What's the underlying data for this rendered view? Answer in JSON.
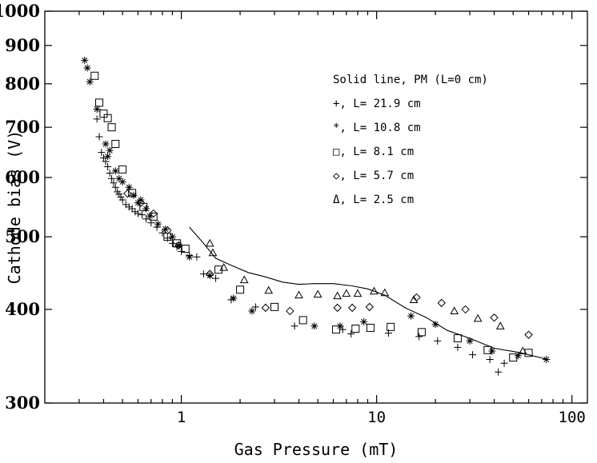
{
  "chart_data": {
    "type": "scatter",
    "title": "",
    "xlabel": "Gas Pressure (mT)",
    "ylabel": "Cathode bias (V)",
    "x_scale": "log",
    "y_scale": "log",
    "xlim": [
      0.2,
      120
    ],
    "ylim": [
      300,
      1000
    ],
    "x_ticks": [
      1,
      10,
      100
    ],
    "x_tick_labels": [
      "1",
      "10",
      "100"
    ],
    "y_ticks": [
      300,
      400,
      500,
      600,
      700,
      800,
      900,
      1000
    ],
    "y_tick_labels": [
      "300",
      "400",
      "500",
      "600",
      "700",
      "800",
      "900",
      "1000"
    ],
    "grid": false,
    "legend_position": "top-right",
    "legend_title": "Solid line, PM (L=0 cm)",
    "series": [
      {
        "name": "L= 21.9 cm",
        "marker": "+",
        "legend_label": "+, L= 21.9 cm",
        "x": [
          0.37,
          0.38,
          0.39,
          0.4,
          0.41,
          0.42,
          0.43,
          0.44,
          0.45,
          0.46,
          0.47,
          0.48,
          0.49,
          0.5,
          0.52,
          0.54,
          0.56,
          0.58,
          0.6,
          0.63,
          0.66,
          0.7,
          0.75,
          0.8,
          0.85,
          0.9,
          0.95,
          1.0,
          1.1,
          1.2,
          1.3,
          1.5,
          1.8,
          2.4,
          3.8,
          6.7,
          7.4,
          11.5,
          16.5,
          20.5,
          26,
          31,
          38,
          42,
          45
        ],
        "y": [
          718,
          680,
          648,
          637,
          630,
          620,
          608,
          598,
          590,
          582,
          574,
          570,
          565,
          560,
          552,
          548,
          545,
          540,
          537,
          535,
          528,
          522,
          515,
          506,
          498,
          490,
          485,
          478,
          472,
          470,
          446,
          440,
          412,
          403,
          380,
          376,
          371,
          372,
          368,
          363,
          356,
          348,
          343,
          330,
          339
        ]
      },
      {
        "name": "L= 10.8 cm",
        "marker": "*",
        "legend_label": "*, L= 10.8 cm",
        "x": [
          0.32,
          0.33,
          0.34,
          0.37,
          0.41,
          0.42,
          0.43,
          0.46,
          0.48,
          0.5,
          0.54,
          0.57,
          0.6,
          0.62,
          0.66,
          0.69,
          0.76,
          0.83,
          0.9,
          0.97,
          1.1,
          1.4,
          1.85,
          2.3,
          4.8,
          6.5,
          8.6,
          15,
          20,
          30,
          39,
          53,
          74
        ],
        "y": [
          860,
          840,
          805,
          740,
          665,
          640,
          652,
          612,
          598,
          592,
          582,
          568,
          555,
          560,
          545,
          533,
          520,
          512,
          500,
          487,
          470,
          444,
          414,
          398,
          380,
          380,
          385,
          392,
          382,
          363,
          352,
          347,
          343
        ]
      },
      {
        "name": "L= 8.1 cm",
        "marker": "square",
        "legend_label": "□, L= 8.1 cm",
        "x": [
          0.36,
          0.38,
          0.4,
          0.42,
          0.44,
          0.46,
          0.5,
          0.56,
          0.64,
          0.72,
          0.85,
          0.95,
          1.05,
          1.55,
          2.0,
          3.0,
          4.2,
          6.2,
          7.8,
          9.3,
          11.8,
          17,
          26,
          37,
          50,
          60
        ],
        "y": [
          820,
          755,
          730,
          720,
          700,
          665,
          615,
          572,
          548,
          532,
          500,
          490,
          482,
          452,
          425,
          403,
          387,
          376,
          377,
          378,
          379,
          373,
          366,
          353,
          345,
          350
        ]
      },
      {
        "name": "L= 5.7 cm",
        "marker": "diamond",
        "legend_label": "◇, L= 5.7 cm",
        "x": [
          0.53,
          0.62,
          0.72,
          0.85,
          0.97,
          1.4,
          2.7,
          3.6,
          6.3,
          7.5,
          9.2,
          16,
          21.5,
          28.5,
          40,
          60
        ],
        "y": [
          571,
          555,
          537,
          510,
          487,
          446,
          402,
          398,
          402,
          402,
          403,
          415,
          408,
          400,
          390,
          370
        ]
      },
      {
        "name": "L= 2.5 cm",
        "marker": "triangle",
        "legend_label": "Δ, L= 2.5 cm",
        "x": [
          1.4,
          1.45,
          1.65,
          2.1,
          2.8,
          4.0,
          5.0,
          6.3,
          7.0,
          8.0,
          9.7,
          11.0,
          15.5,
          25,
          33,
          43,
          56
        ],
        "y": [
          490,
          476,
          455,
          438,
          424,
          418,
          419,
          417,
          420,
          420,
          423,
          421,
          412,
          398,
          389,
          380,
          352
        ]
      },
      {
        "name": "PM (L=0 cm)",
        "marker": "line",
        "legend_label": "Solid line",
        "x": [
          1.1,
          1.3,
          1.5,
          1.8,
          2.2,
          2.7,
          3.3,
          4.0,
          4.8,
          6.0,
          7.5,
          9.0,
          11.0,
          14.0,
          18.0,
          23.0,
          30.0,
          40.0,
          55.0,
          75.0
        ],
        "y": [
          515,
          490,
          468,
          458,
          448,
          442,
          435,
          432,
          433,
          433,
          430,
          426,
          418,
          402,
          390,
          375,
          366,
          355,
          350,
          343
        ]
      }
    ]
  }
}
